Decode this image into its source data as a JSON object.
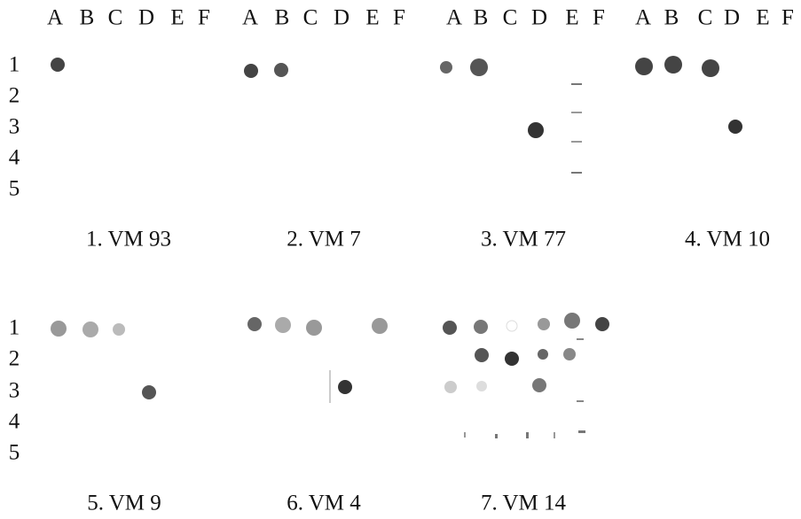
{
  "column_headers": [
    [
      "A",
      "B",
      "C",
      "D",
      "E",
      "F"
    ],
    [
      "A",
      "B",
      "C",
      "D",
      "E",
      "F"
    ],
    [
      "A",
      "B",
      "C",
      "D",
      "E",
      "F"
    ],
    [
      "A",
      "B",
      "C",
      "D",
      "E",
      "F"
    ]
  ],
  "row_labels_top": [
    "1",
    "2",
    "3",
    "4",
    "5"
  ],
  "row_labels_bottom": [
    "1",
    "2",
    "3",
    "4",
    "5"
  ],
  "captions": [
    "1. VM 93",
    "2. VM 7",
    "3. VM 77",
    "4. VM 10",
    "5. VM 9",
    "6. VM 4",
    "7. VM 14"
  ]
}
